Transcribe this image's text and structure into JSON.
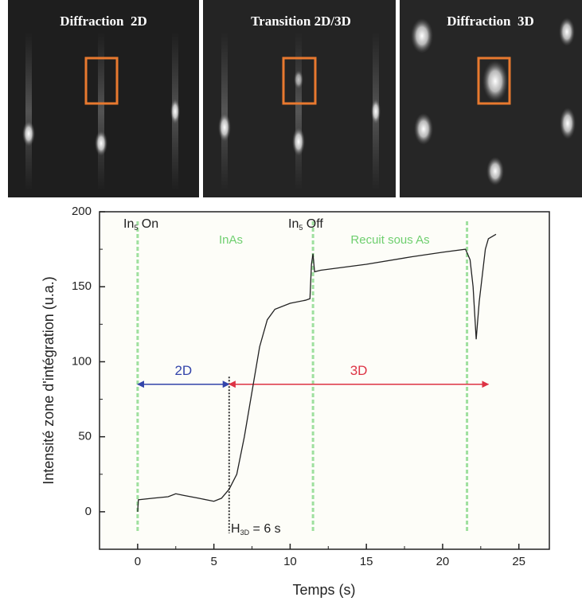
{
  "images": [
    {
      "title": "Diffraction  2D"
    },
    {
      "title": "Transition 2D/3D"
    },
    {
      "title": "Diffraction  3D"
    }
  ],
  "chart_data": {
    "type": "line",
    "x_label": "Temps (s)",
    "y_label": "Intensité zone d'intégration (u.a.)",
    "xlim": [
      -2.5,
      27
    ],
    "ylim": [
      -25,
      200
    ],
    "xticks": [
      0,
      5,
      10,
      15,
      20,
      25
    ],
    "yticks": [
      0,
      50,
      100,
      150,
      200
    ],
    "series": [
      {
        "color": "#222222",
        "x": [
          0,
          0.05,
          1,
          2,
          2.5,
          3,
          4,
          5,
          5.5,
          6,
          6.5,
          7,
          7.5,
          8,
          8.5,
          9,
          10,
          11,
          11.3,
          11.4,
          11.5,
          11.6,
          12,
          15,
          18,
          20,
          21.5,
          21.8,
          22,
          22.2,
          22.4,
          22.8,
          23,
          23.5
        ],
        "values": [
          0,
          8,
          9,
          10,
          12,
          11,
          9,
          7,
          9,
          15,
          25,
          50,
          80,
          110,
          128,
          135,
          139,
          141,
          142,
          165,
          172,
          160,
          161,
          165,
          170,
          173,
          175,
          168,
          150,
          115,
          140,
          175,
          182,
          185
        ]
      }
    ],
    "vlines": [
      0,
      11.5,
      21.6
    ],
    "vline_color": "#9fe09f",
    "threshold_x": 6,
    "arrows": [
      {
        "label": "2D",
        "x": [
          0,
          6
        ],
        "y": 85,
        "color": "#3344aa"
      },
      {
        "label": "3D",
        "x": [
          6,
          23
        ],
        "y": 85,
        "color": "#dd3344"
      }
    ],
    "annotations": [
      {
        "text": "In",
        "sub": "5",
        "rest": " On"
      },
      {
        "text": "In",
        "sub": "5",
        "rest": " Off"
      },
      {
        "text": "H",
        "sub": "3D",
        "rest": " = 6 s"
      }
    ],
    "phases": [
      "InAs",
      "Recuit sous As"
    ]
  }
}
